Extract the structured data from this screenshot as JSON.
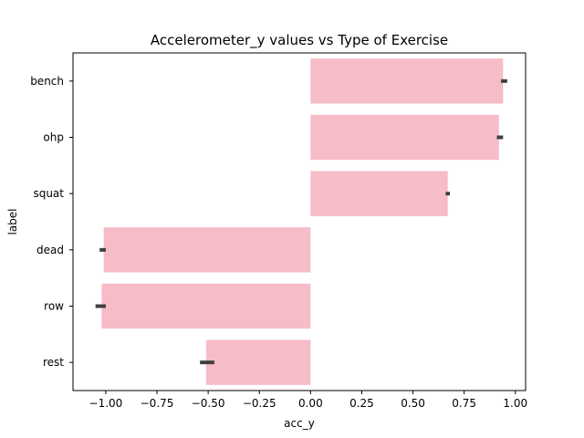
{
  "chart_data": {
    "type": "bar",
    "orientation": "horizontal",
    "title": "Accelerometer_y values vs Type of Exercise",
    "xlabel": "acc_y",
    "ylabel": "label",
    "categories": [
      "bench",
      "ohp",
      "squat",
      "dead",
      "row",
      "rest"
    ],
    "values": [
      0.94,
      0.92,
      0.67,
      -1.01,
      -1.02,
      -0.51
    ],
    "error_bars": [
      [
        0.93,
        0.96
      ],
      [
        0.91,
        0.94
      ],
      [
        0.66,
        0.68
      ],
      [
        -1.03,
        -1.0
      ],
      [
        -1.05,
        -1.0
      ],
      [
        -0.54,
        -0.47
      ]
    ],
    "xlim": [
      -1.16,
      1.05
    ],
    "xticks": [
      -1.0,
      -0.75,
      -0.5,
      -0.25,
      0.0,
      0.25,
      0.5,
      0.75,
      1.0
    ],
    "xtick_labels": [
      "−1.00",
      "−0.75",
      "−0.50",
      "−0.25",
      "0.00",
      "0.25",
      "0.50",
      "0.75",
      "1.00"
    ],
    "bar_color": "#f6bcc7",
    "errbar_color": "#3f3f3f",
    "grid": false
  }
}
